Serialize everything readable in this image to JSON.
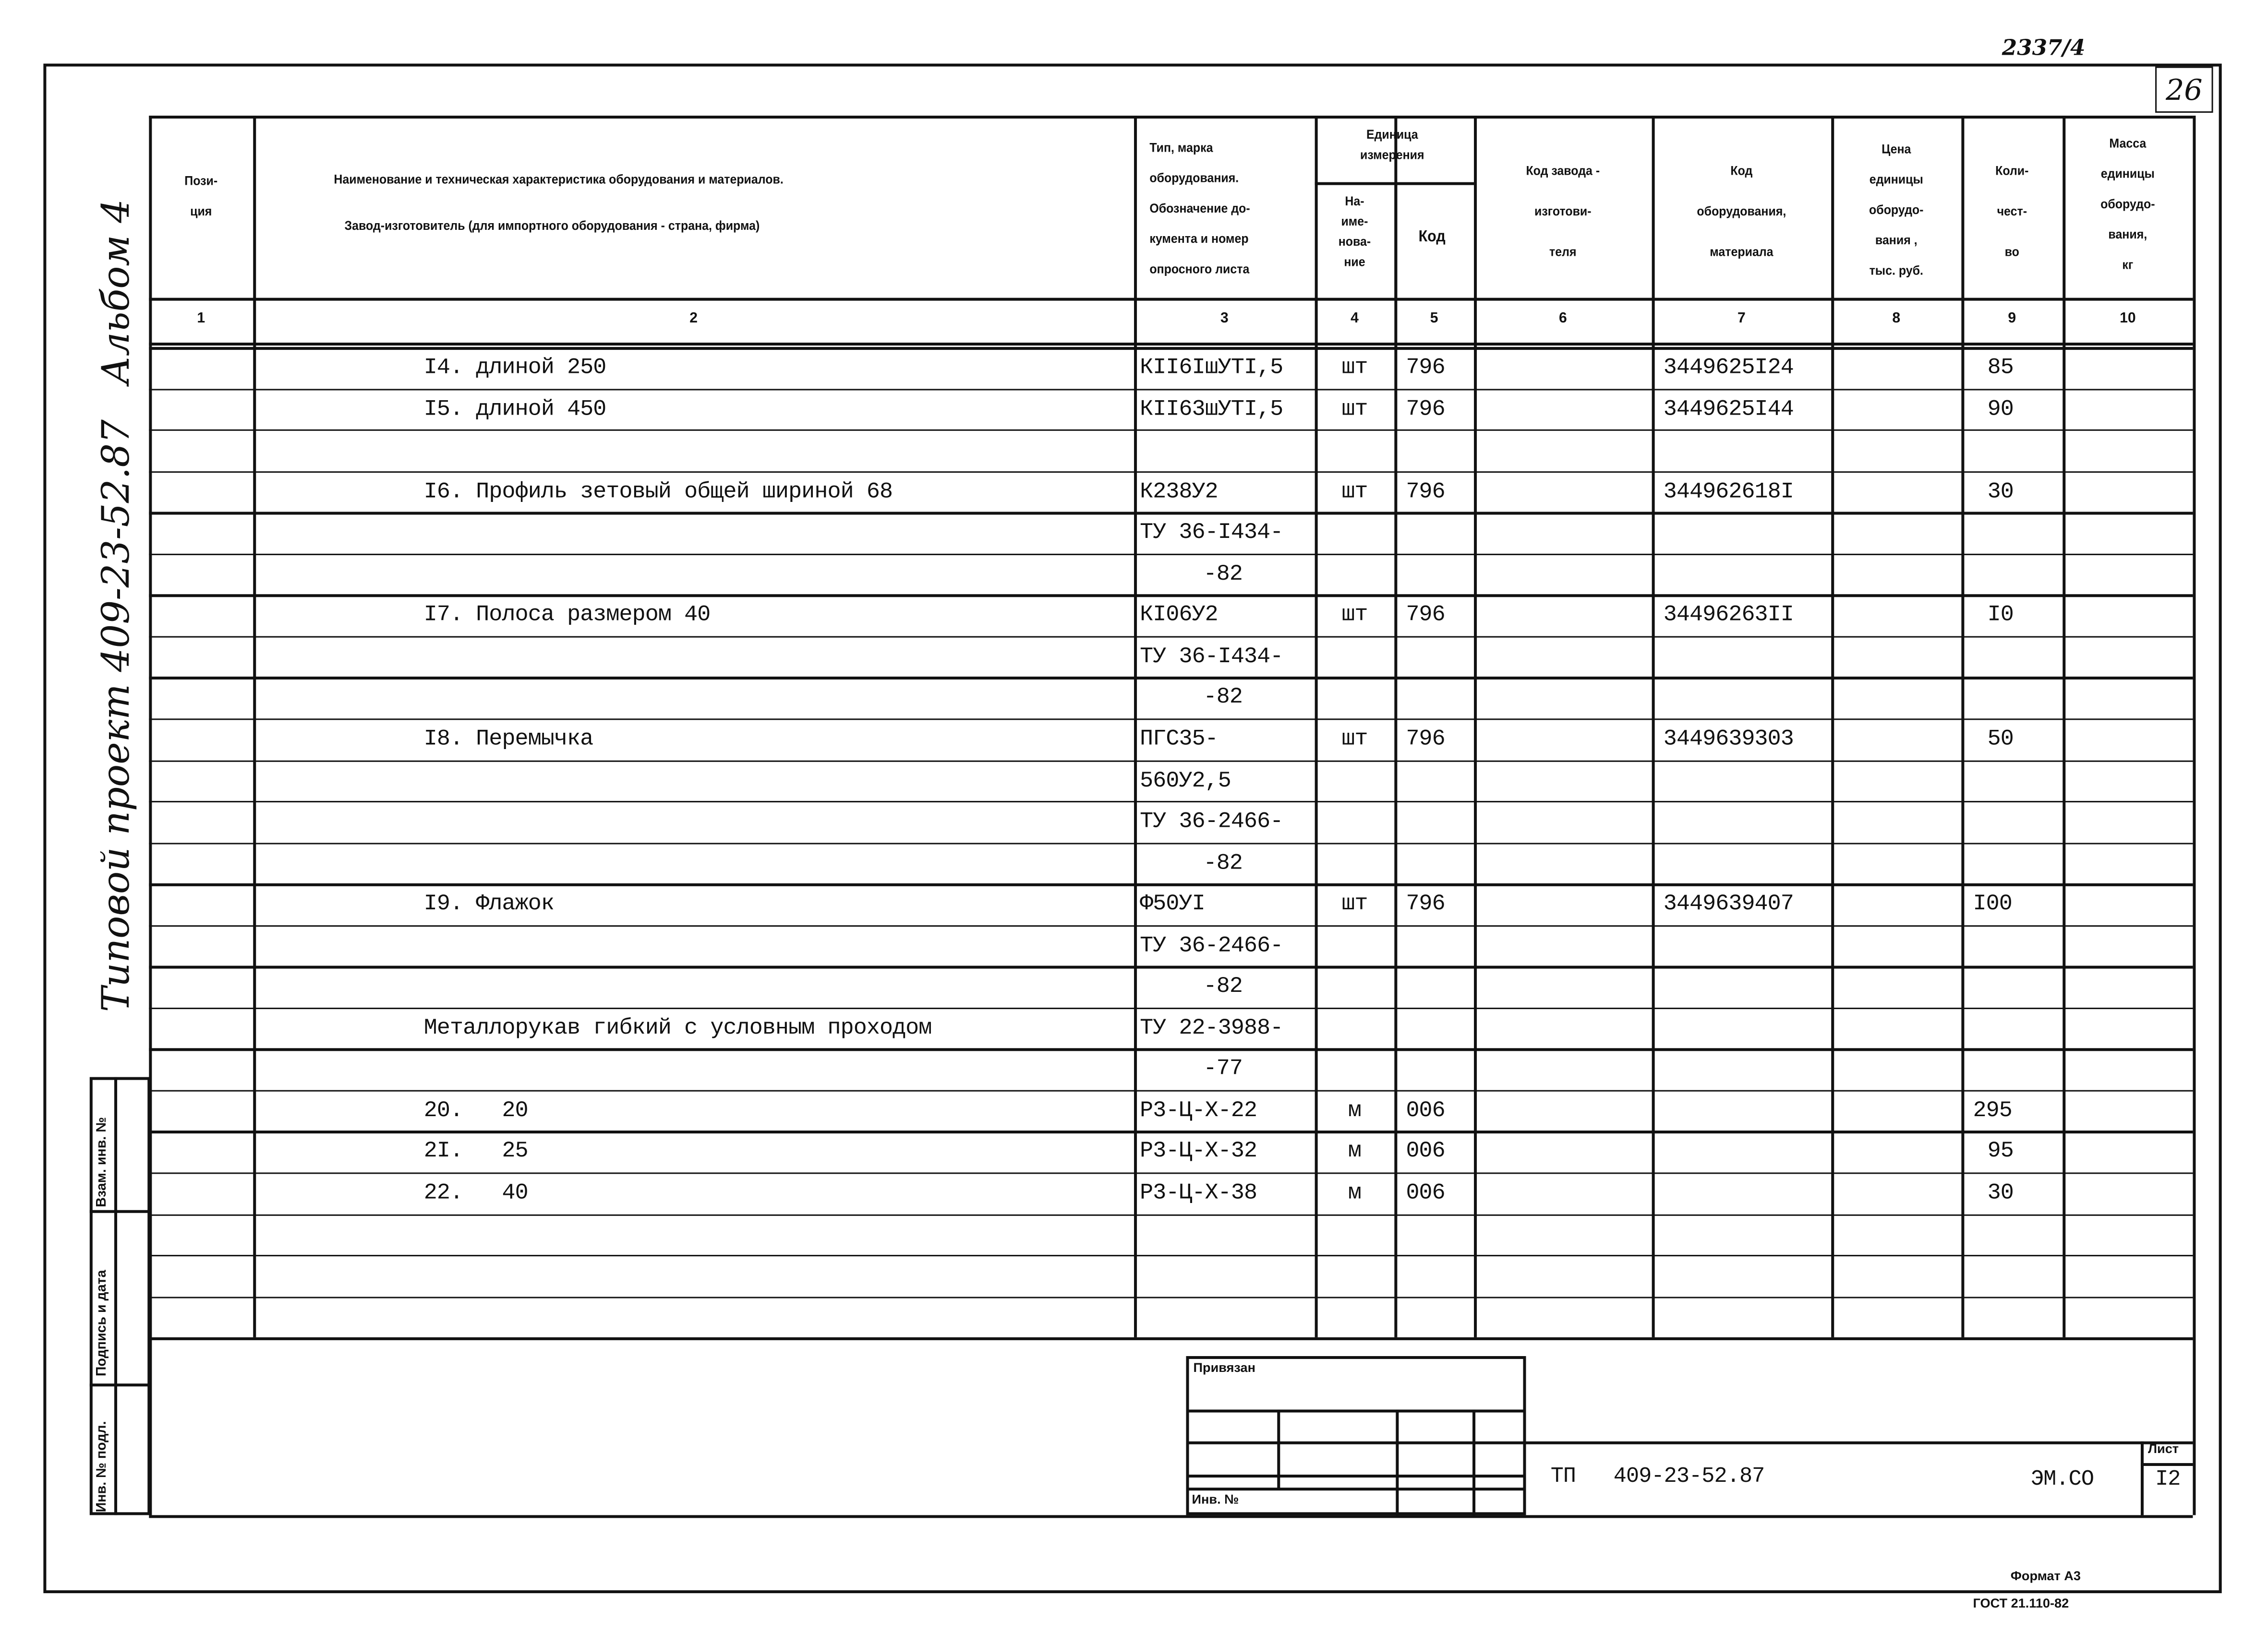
{
  "sheet": {
    "top_right_number": "2337/4",
    "page_box": "26",
    "side_album": "Альбом 4",
    "side_project": "Типовой проект 409-23-52.87",
    "format": "Формат А3",
    "gost": "ГОСТ 21.110-82"
  },
  "stamp_left": {
    "vzam": "Взам. инв. №",
    "podpis": "Подпись и дата",
    "inv_podl": "Инв. № подл."
  },
  "header": {
    "col1": [
      "Пози-",
      "ция"
    ],
    "col2": [
      "Наименование и техническая характеристика  оборудования и материалов.",
      "Завод-изготовитель  (для импортного оборудования -  страна, фирма)"
    ],
    "col3": [
      "Тип,      марка",
      "оборудования.",
      "Обозначение  до-",
      "кумента  и  номер",
      "опросного листа"
    ],
    "unit_group": [
      "Единица",
      "измерения"
    ],
    "col4": [
      "На-",
      "име-",
      "нова-",
      "ние"
    ],
    "col5": "Код",
    "col6": [
      "Код   завода -",
      "изготови-",
      "теля"
    ],
    "col7": [
      "Код",
      "оборудования,",
      "материала"
    ],
    "col8": [
      "Цена",
      "единицы",
      "оборудо-",
      "вания ,",
      "тыс. руб."
    ],
    "col9": [
      "Коли-",
      "чест-",
      "во"
    ],
    "col10": [
      "Масса",
      "единицы",
      "оборудо-",
      "вания,",
      "кг"
    ],
    "numbers": [
      "1",
      "2",
      "3",
      "4",
      "5",
      "6",
      "7",
      "8",
      "9",
      "10"
    ]
  },
  "rows": [
    [
      "",
      "I4. длиной 250",
      "КII6IшУТI,5",
      "шт",
      "796",
      "",
      "3449625I24",
      "",
      "85",
      ""
    ],
    [
      "",
      "I5. длиной 450",
      "КII63шУТI,5",
      "шт",
      "796",
      "",
      "3449625I44",
      "",
      "90",
      ""
    ],
    [
      "",
      "",
      "",
      "",
      "",
      "",
      "",
      "",
      "",
      ""
    ],
    [
      "",
      "I6. Профиль зетовый общей шириной 68",
      "К238У2",
      "шт",
      "796",
      "",
      "344962618I",
      "",
      "30",
      ""
    ],
    [
      "",
      "",
      "ТУ 36-I434-",
      "",
      "",
      "",
      "",
      "",
      "",
      ""
    ],
    [
      "",
      "",
      "-82",
      "",
      "",
      "",
      "",
      "",
      "",
      ""
    ],
    [
      "",
      "I7. Полоса размером 40",
      "КI06У2",
      "шт",
      "796",
      "",
      "34496263II",
      "",
      "I0",
      ""
    ],
    [
      "",
      "",
      "ТУ 36-I434-",
      "",
      "",
      "",
      "",
      "",
      "",
      ""
    ],
    [
      "",
      "",
      "-82",
      "",
      "",
      "",
      "",
      "",
      "",
      ""
    ],
    [
      "",
      "I8. Перемычка",
      "ПГС35-",
      "шт",
      "796",
      "",
      "3449639303",
      "",
      "50",
      ""
    ],
    [
      "",
      "",
      "560У2,5",
      "",
      "",
      "",
      "",
      "",
      "",
      ""
    ],
    [
      "",
      "",
      "ТУ 36-2466-",
      "",
      "",
      "",
      "",
      "",
      "",
      ""
    ],
    [
      "",
      "",
      "-82",
      "",
      "",
      "",
      "",
      "",
      "",
      ""
    ],
    [
      "",
      "I9. Флажок",
      "Ф50УI",
      "шт",
      "796",
      "",
      "3449639407",
      "",
      "I00",
      ""
    ],
    [
      "",
      "",
      "ТУ 36-2466-",
      "",
      "",
      "",
      "",
      "",
      "",
      ""
    ],
    [
      "",
      "",
      "-82",
      "",
      "",
      "",
      "",
      "",
      "",
      ""
    ],
    [
      "",
      "Металлорукав гибкий с условным проходом",
      "ТУ 22-3988-",
      "",
      "",
      "",
      "",
      "",
      "",
      ""
    ],
    [
      "",
      "",
      "-77",
      "",
      "",
      "",
      "",
      "",
      "",
      ""
    ],
    [
      "",
      "20.   20",
      "Р3-Ц-Х-22",
      "м",
      "006",
      "",
      "",
      "",
      "295",
      ""
    ],
    [
      "",
      "2I.   25",
      "Р3-Ц-Х-32",
      "м",
      "006",
      "",
      "",
      "",
      "95",
      ""
    ],
    [
      "",
      "22.   40",
      "Р3-Ц-Х-38",
      "м",
      "006",
      "",
      "",
      "",
      "30",
      ""
    ],
    [
      "",
      "",
      "",
      "",
      "",
      "",
      "",
      "",
      "",
      ""
    ],
    [
      "",
      "",
      "",
      "",
      "",
      "",
      "",
      "",
      "",
      ""
    ],
    [
      "",
      "",
      "",
      "",
      "",
      "",
      "",
      "",
      "",
      ""
    ]
  ],
  "title_block": {
    "privyazan": "Привязан",
    "inv_no": "Инв. №",
    "doc_code": "ТП   409-23-52.87",
    "mark": "ЭМ.СО",
    "sheet_label": "Лист",
    "sheet_no": "I2"
  }
}
